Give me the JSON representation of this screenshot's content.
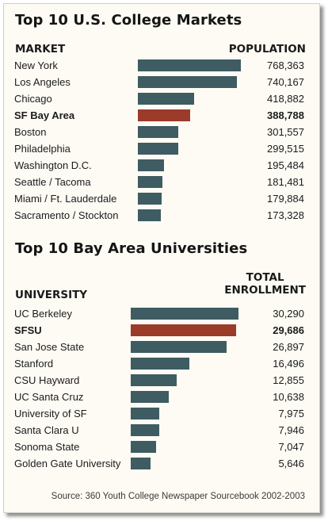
{
  "colors": {
    "bar": "#3e5c62",
    "highlight": "#9b3b2a"
  },
  "chart_data": [
    {
      "type": "bar",
      "orientation": "horizontal",
      "title": "Top 10 U.S. College Markets",
      "label_header": "MARKET",
      "value_header": "POPULATION",
      "highlight": "SF Bay Area",
      "categories": [
        "New York",
        "Los Angeles",
        "Chicago",
        "SF Bay Area",
        "Boston",
        "Philadelphia",
        "Washington D.C.",
        "Seattle / Tacoma",
        "Miami / Ft. Lauderdale",
        "Sacramento / Stockton"
      ],
      "values": [
        768363,
        740167,
        418882,
        388788,
        301557,
        299515,
        195484,
        181481,
        179884,
        173328
      ],
      "value_labels": [
        "768,363",
        "740,167",
        "418,882",
        "388,788",
        "301,557",
        "299,515",
        "195,484",
        "181,481",
        "179,884",
        "173,328"
      ],
      "grid": false
    },
    {
      "type": "bar",
      "orientation": "horizontal",
      "title": "Top 10 Bay Area Universities",
      "label_header": "UNIVERSITY",
      "value_header": [
        "TOTAL",
        "ENROLLMENT"
      ],
      "highlight": "SFSU",
      "categories": [
        "UC Berkeley",
        "SFSU",
        "San Jose State",
        "Stanford",
        "CSU Hayward",
        "UC Santa Cruz",
        "University of SF",
        "Santa Clara U",
        "Sonoma State",
        "Golden Gate University"
      ],
      "values": [
        30290,
        29686,
        26897,
        16496,
        12855,
        10638,
        7975,
        7946,
        7047,
        5646
      ],
      "value_labels": [
        "30,290",
        "29,686",
        "26,897",
        "16,496",
        "12,855",
        "10,638",
        "7,975",
        "7,946",
        "7,047",
        "5,646"
      ],
      "grid": false
    }
  ],
  "source": "Source: 360 Youth College Newspaper Sourcebook 2002-2003"
}
